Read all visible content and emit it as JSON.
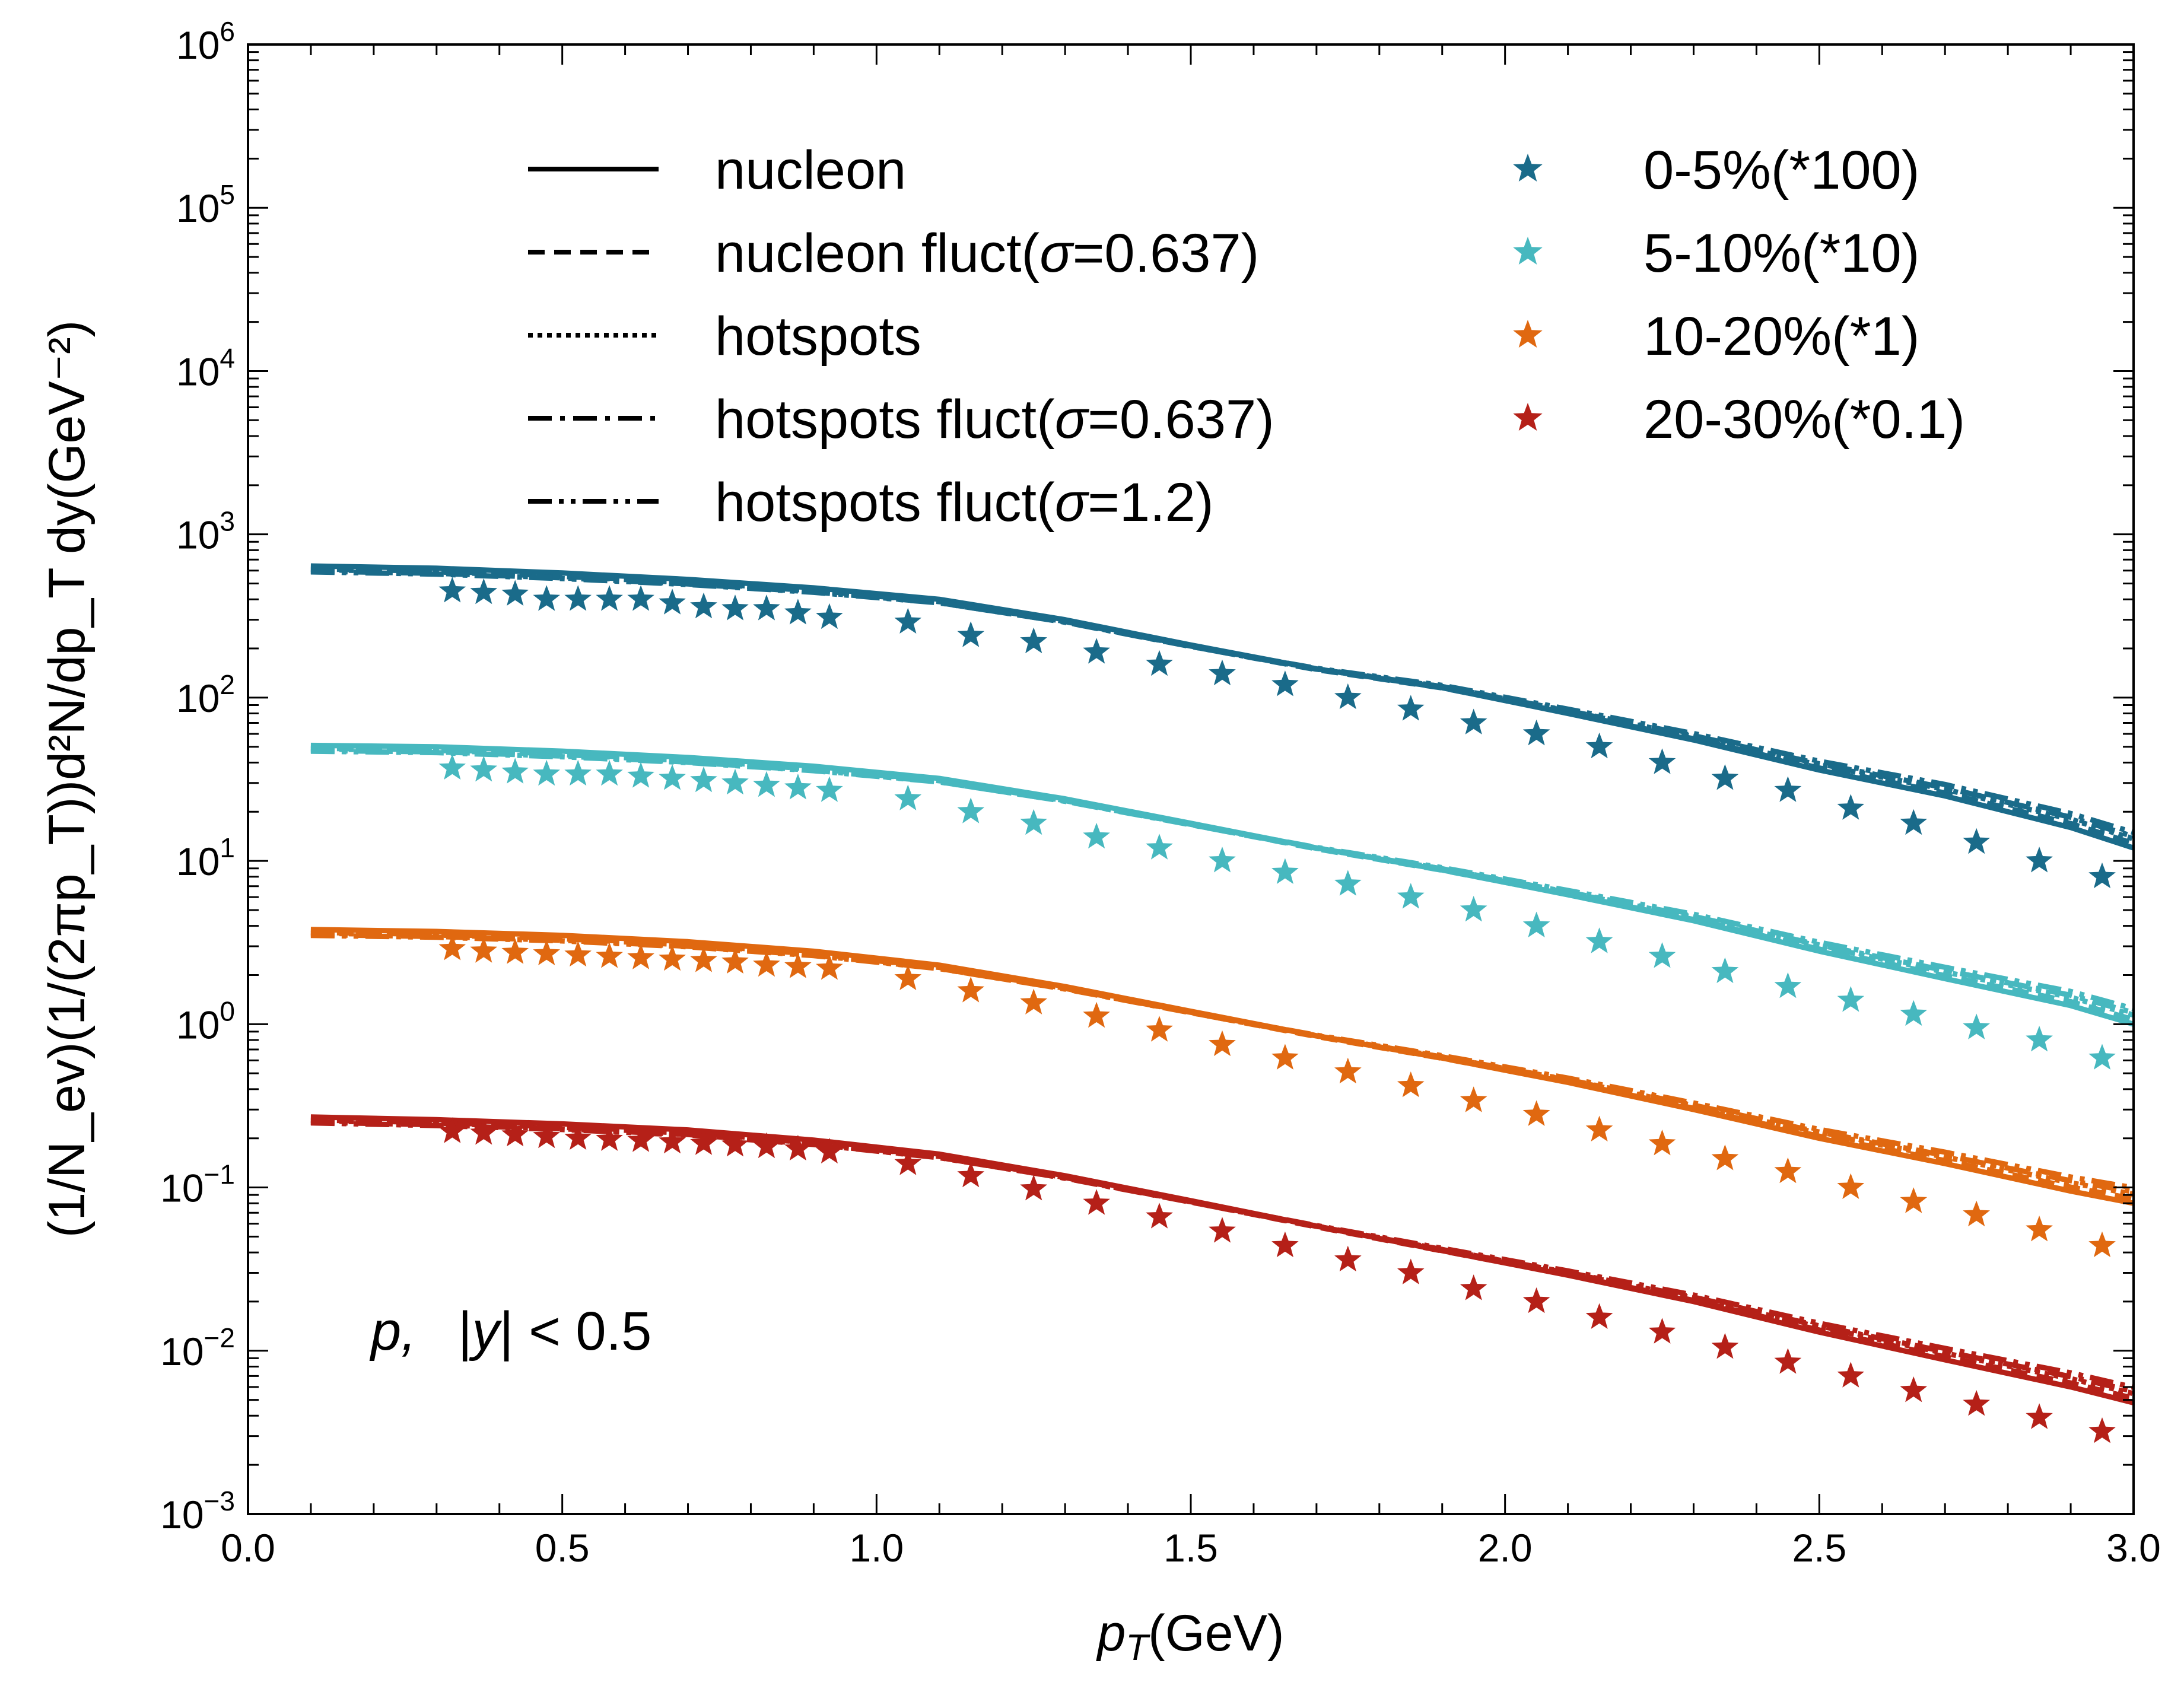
{
  "chart_data": {
    "type": "line",
    "title": "",
    "xlabel": {
      "main": "p",
      "sub": "T",
      "unit": "(GeV)"
    },
    "ylabel": "(1/N_ev)(1/(2πp_T))d²N/dp_T dy(GeV⁻²)",
    "xlim": [
      0.0,
      3.0
    ],
    "ylim_exp": [
      -3,
      6
    ],
    "yscale": "log",
    "x_ticks": [
      "0.0",
      "0.5",
      "1.0",
      "1.5",
      "2.0",
      "2.5",
      "3.0"
    ],
    "y_tick_base": "10",
    "y_tick_exponents": [
      "−3",
      "−2",
      "−1",
      "0",
      "1",
      "2",
      "3",
      "4",
      "5",
      "6"
    ],
    "annotation": {
      "particle": "p,",
      "cut_lhs": "|",
      "cut_var": "y",
      "cut_rhs": "| < 0.5"
    },
    "model_legend": [
      {
        "label": "nucleon",
        "style": "solid"
      },
      {
        "label_pre": "nucleon fluct(",
        "sigma": "σ",
        "label_post": "=0.637)",
        "style": "dashed"
      },
      {
        "label": "hotspots",
        "style": "dotted"
      },
      {
        "label_pre": "hotspots fluct(",
        "sigma": "σ",
        "label_post": "=0.637)",
        "style": "dashdot"
      },
      {
        "label_pre": "hotspots fluct(",
        "sigma": "σ",
        "label_post": "=1.2)",
        "style": "dashdotdot"
      }
    ],
    "model_styles": [
      {
        "name": "nucleon",
        "dash": "",
        "shift": 1.0,
        "sd": 0.0
      },
      {
        "name": "nucleon fluct",
        "dash": "28,16",
        "shift": 0.96,
        "sd": 0.05
      },
      {
        "name": "hotspots",
        "dash": "8,8",
        "shift": 0.95,
        "sd": 0.09
      },
      {
        "name": "hotspots fluct 0.637",
        "dash": "40,14,8,14",
        "shift": 0.93,
        "sd": 0.12
      },
      {
        "name": "hotspots fluct 1.2",
        "dash": "40,12,8,12,8,12",
        "shift": 0.92,
        "sd": 0.16
      }
    ],
    "series": [
      {
        "name": "0-5%(*100)",
        "color": "#1a6b8a",
        "model_x": [
          0.1,
          0.3,
          0.5,
          0.7,
          0.9,
          1.1,
          1.3,
          1.5,
          1.7,
          1.9,
          2.1,
          2.3,
          2.5,
          2.7,
          2.9,
          3.0
        ],
        "model_y": [
          640,
          620,
          580,
          530,
          470,
          400,
          300,
          210,
          150,
          115,
          80,
          55,
          36,
          25,
          16,
          12
        ],
        "data_x": [
          0.325,
          0.375,
          0.425,
          0.475,
          0.525,
          0.575,
          0.625,
          0.675,
          0.725,
          0.775,
          0.825,
          0.875,
          0.925,
          1.05,
          1.15,
          1.25,
          1.35,
          1.45,
          1.55,
          1.65,
          1.75,
          1.85,
          1.95,
          2.05,
          2.15,
          2.25,
          2.35,
          2.45,
          2.55,
          2.65,
          2.75,
          2.85,
          2.95
        ],
        "data_y": [
          450,
          440,
          430,
          400,
          400,
          400,
          400,
          380,
          360,
          350,
          350,
          330,
          310,
          290,
          240,
          220,
          190,
          160,
          140,
          120,
          100,
          85,
          70,
          60,
          50,
          40,
          32,
          27,
          21,
          17,
          13,
          10,
          8
        ]
      },
      {
        "name": "5-10%(*10)",
        "color": "#47b8bf",
        "model_x": [
          0.1,
          0.3,
          0.5,
          0.7,
          0.9,
          1.1,
          1.3,
          1.5,
          1.7,
          1.9,
          2.1,
          2.3,
          2.5,
          2.7,
          2.9,
          3.0
        ],
        "model_y": [
          51,
          50,
          47,
          43,
          38,
          32,
          24,
          17,
          12,
          8.8,
          6.2,
          4.3,
          2.8,
          1.9,
          1.3,
          1.0
        ],
        "data_x": [
          0.325,
          0.375,
          0.425,
          0.475,
          0.525,
          0.575,
          0.625,
          0.675,
          0.725,
          0.775,
          0.825,
          0.875,
          0.925,
          1.05,
          1.15,
          1.25,
          1.35,
          1.45,
          1.55,
          1.65,
          1.75,
          1.85,
          1.95,
          2.05,
          2.15,
          2.25,
          2.35,
          2.45,
          2.55,
          2.65,
          2.75,
          2.85,
          2.95
        ],
        "data_y": [
          37,
          36,
          35,
          34,
          34,
          34,
          33,
          32,
          31,
          30,
          29,
          28,
          27,
          24,
          20,
          17,
          14,
          12,
          10,
          8.5,
          7.2,
          6.0,
          5.0,
          4.0,
          3.2,
          2.6,
          2.1,
          1.7,
          1.4,
          1.15,
          0.95,
          0.8,
          0.62
        ]
      },
      {
        "name": "10-20%(*1)",
        "color": "#e06810",
        "model_x": [
          0.1,
          0.3,
          0.5,
          0.7,
          0.9,
          1.1,
          1.3,
          1.5,
          1.7,
          1.9,
          2.1,
          2.3,
          2.5,
          2.7,
          2.9,
          3.0
        ],
        "model_y": [
          3.8,
          3.7,
          3.5,
          3.2,
          2.8,
          2.3,
          1.7,
          1.2,
          0.85,
          0.62,
          0.44,
          0.3,
          0.2,
          0.14,
          0.095,
          0.08
        ],
        "data_x": [
          0.325,
          0.375,
          0.425,
          0.475,
          0.525,
          0.575,
          0.625,
          0.675,
          0.725,
          0.775,
          0.825,
          0.875,
          0.925,
          1.05,
          1.15,
          1.25,
          1.35,
          1.45,
          1.55,
          1.65,
          1.75,
          1.85,
          1.95,
          2.05,
          2.15,
          2.25,
          2.35,
          2.45,
          2.55,
          2.65,
          2.75,
          2.85,
          2.95
        ],
        "data_y": [
          2.9,
          2.8,
          2.75,
          2.7,
          2.65,
          2.6,
          2.55,
          2.5,
          2.45,
          2.4,
          2.3,
          2.25,
          2.2,
          1.9,
          1.6,
          1.35,
          1.12,
          0.92,
          0.75,
          0.62,
          0.51,
          0.42,
          0.34,
          0.28,
          0.225,
          0.185,
          0.15,
          0.125,
          0.1,
          0.082,
          0.068,
          0.055,
          0.044
        ]
      },
      {
        "name": "20-30%(*0.1)",
        "color": "#b52018",
        "model_x": [
          0.1,
          0.3,
          0.5,
          0.7,
          0.9,
          1.1,
          1.3,
          1.5,
          1.7,
          1.9,
          2.1,
          2.3,
          2.5,
          2.7,
          2.9,
          3.0
        ],
        "model_y": [
          0.27,
          0.26,
          0.245,
          0.225,
          0.195,
          0.16,
          0.118,
          0.083,
          0.058,
          0.041,
          0.029,
          0.02,
          0.013,
          0.0088,
          0.006,
          0.0048
        ],
        "data_x": [
          0.325,
          0.375,
          0.425,
          0.475,
          0.525,
          0.575,
          0.625,
          0.675,
          0.725,
          0.775,
          0.825,
          0.875,
          0.925,
          1.05,
          1.15,
          1.25,
          1.35,
          1.45,
          1.55,
          1.65,
          1.75,
          1.85,
          1.95,
          2.05,
          2.15,
          2.25,
          2.35,
          2.45,
          2.55,
          2.65,
          2.75,
          2.85,
          2.95
        ],
        "data_y": [
          0.22,
          0.215,
          0.21,
          0.205,
          0.2,
          0.197,
          0.194,
          0.19,
          0.186,
          0.182,
          0.178,
          0.172,
          0.165,
          0.14,
          0.118,
          0.098,
          0.08,
          0.066,
          0.054,
          0.044,
          0.036,
          0.03,
          0.024,
          0.02,
          0.016,
          0.013,
          0.0105,
          0.0085,
          0.007,
          0.0057,
          0.0047,
          0.0039,
          0.0032
        ]
      }
    ]
  }
}
